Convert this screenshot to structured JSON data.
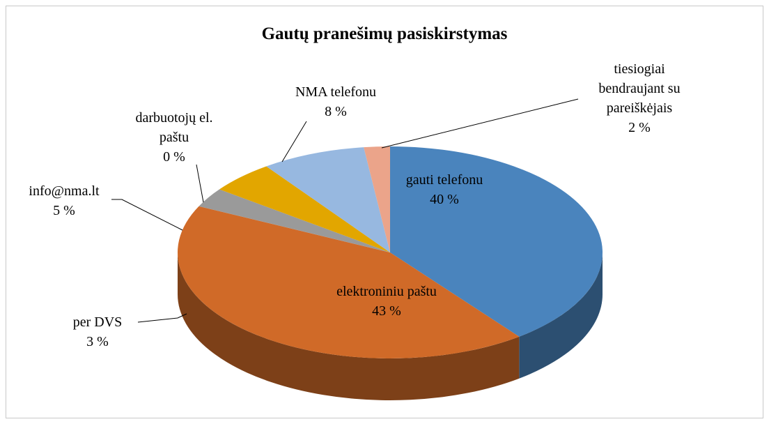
{
  "chart_data": {
    "type": "pie3d",
    "title": "Gautų pranešimų pasiskirstymas",
    "categories": [
      "gauti telefonu",
      "elektroniniu paštu",
      "per DVS",
      "info@nma.lt",
      "darbuotojų el. paštu",
      "NMA telefonu",
      "tiesiogiai bendraujant su pareiškėjais"
    ],
    "values": [
      40,
      43,
      3,
      5,
      0,
      8,
      2
    ],
    "value_labels": [
      "40 %",
      "43 %",
      "3 %",
      "5 %",
      "0 %",
      "8 %",
      "2 %"
    ],
    "colors": [
      "#4a84bd",
      "#d06a28",
      "#9a9a9a",
      "#e2a600",
      "#3a64b6",
      "#97b8e0",
      "#eba48a"
    ]
  }
}
